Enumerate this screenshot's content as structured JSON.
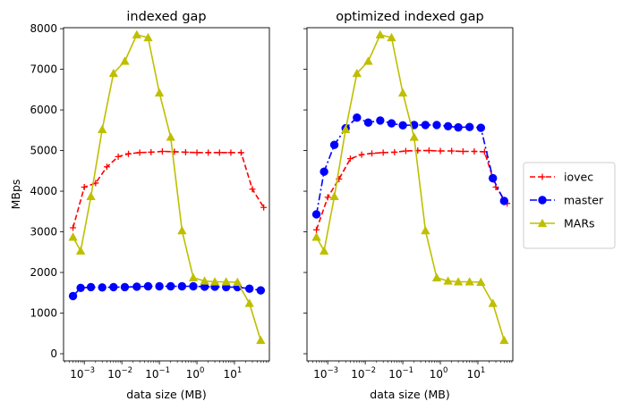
{
  "chart_data": [
    {
      "type": "line",
      "title": "indexed gap",
      "xlabel": "data size (MB)",
      "ylabel": "MBps",
      "xscale": "log",
      "ylim": [
        0,
        8200
      ],
      "yticks": [
        0,
        1000,
        2000,
        3000,
        4000,
        5000,
        6000,
        7000,
        8000
      ],
      "xticks": [
        {
          "exp": "−3",
          "v": 0.001
        },
        {
          "exp": "−2",
          "v": 0.01
        },
        {
          "exp": "−1",
          "v": 0.1
        },
        {
          "exp": "0",
          "v": 1
        },
        {
          "exp": "1",
          "v": 10
        }
      ],
      "series": [
        {
          "name": "iovec",
          "color": "#ff0000",
          "dash": "6,3",
          "marker": "plus",
          "x": [
            0.0005,
            0.001,
            0.002,
            0.004,
            0.008,
            0.015,
            0.03,
            0.06,
            0.12,
            0.25,
            0.5,
            1,
            2,
            4,
            8,
            15,
            30,
            60
          ],
          "y": [
            3100,
            4100,
            4200,
            4600,
            4850,
            4920,
            4950,
            4960,
            4980,
            4970,
            4960,
            4950,
            4950,
            4950,
            4950,
            4950,
            4050,
            3600
          ]
        },
        {
          "name": "master",
          "color": "#0000ff",
          "dash": "8,3,2,3",
          "marker": "circle",
          "x": [
            0.0005,
            0.0008,
            0.0015,
            0.003,
            0.006,
            0.012,
            0.025,
            0.05,
            0.1,
            0.2,
            0.4,
            0.8,
            1.6,
            3,
            6,
            12,
            25,
            50
          ],
          "y": [
            1420,
            1620,
            1640,
            1630,
            1640,
            1640,
            1650,
            1660,
            1660,
            1660,
            1660,
            1660,
            1650,
            1650,
            1640,
            1640,
            1600,
            1560
          ]
        },
        {
          "name": "MARs",
          "color": "#bfbf00",
          "dash": "",
          "marker": "triangle",
          "x": [
            0.0005,
            0.0008,
            0.0015,
            0.003,
            0.006,
            0.012,
            0.025,
            0.05,
            0.1,
            0.2,
            0.4,
            0.8,
            1.6,
            3,
            6,
            12,
            25,
            50
          ],
          "y": [
            2870,
            2530,
            3870,
            5520,
            6900,
            7200,
            7850,
            7780,
            6420,
            5330,
            3030,
            1870,
            1790,
            1770,
            1770,
            1760,
            1240,
            330
          ]
        }
      ]
    },
    {
      "type": "line",
      "title": "optimized indexed gap",
      "xlabel": "data size (MB)",
      "ylabel": "",
      "xscale": "log",
      "ylim": [
        0,
        8200
      ],
      "yticks": [
        0,
        1000,
        2000,
        3000,
        4000,
        5000,
        6000,
        7000,
        8000
      ],
      "xticks": [
        {
          "exp": "−3",
          "v": 0.001
        },
        {
          "exp": "−2",
          "v": 0.01
        },
        {
          "exp": "−1",
          "v": 0.1
        },
        {
          "exp": "0",
          "v": 1
        },
        {
          "exp": "1",
          "v": 10
        }
      ],
      "series": [
        {
          "name": "iovec",
          "color": "#ff0000",
          "dash": "6,3",
          "marker": "plus",
          "x": [
            0.0005,
            0.001,
            0.002,
            0.004,
            0.008,
            0.015,
            0.03,
            0.06,
            0.12,
            0.25,
            0.5,
            1,
            2,
            4,
            8,
            15,
            30,
            60
          ],
          "y": [
            3050,
            3850,
            4300,
            4800,
            4900,
            4930,
            4950,
            4960,
            4990,
            5000,
            5000,
            4990,
            4990,
            4980,
            4980,
            4970,
            4100,
            3700
          ]
        },
        {
          "name": "master",
          "color": "#0000ff",
          "dash": "8,3,2,3",
          "marker": "circle",
          "x": [
            0.0005,
            0.0008,
            0.0015,
            0.003,
            0.006,
            0.012,
            0.025,
            0.05,
            0.1,
            0.2,
            0.4,
            0.8,
            1.6,
            3,
            6,
            12,
            25,
            50
          ],
          "y": [
            3430,
            4480,
            5140,
            5550,
            5810,
            5690,
            5740,
            5670,
            5620,
            5630,
            5630,
            5630,
            5600,
            5570,
            5580,
            5560,
            4320,
            3760
          ]
        },
        {
          "name": "MARs",
          "color": "#bfbf00",
          "dash": "",
          "marker": "triangle",
          "x": [
            0.0005,
            0.0008,
            0.0015,
            0.003,
            0.006,
            0.012,
            0.025,
            0.05,
            0.1,
            0.2,
            0.4,
            0.8,
            1.6,
            3,
            6,
            12,
            25,
            50
          ],
          "y": [
            2870,
            2530,
            3870,
            5520,
            6900,
            7200,
            7850,
            7780,
            6420,
            5330,
            3030,
            1870,
            1790,
            1770,
            1770,
            1760,
            1240,
            330
          ]
        }
      ]
    }
  ],
  "legend": {
    "placement": "right",
    "entries": [
      {
        "label": "iovec",
        "color": "#ff0000",
        "dash": "6,3",
        "marker": "plus"
      },
      {
        "label": "master",
        "color": "#0000ff",
        "dash": "8,3,2,3",
        "marker": "circle"
      },
      {
        "label": "MARs",
        "color": "#bfbf00",
        "dash": "",
        "marker": "triangle"
      }
    ]
  }
}
